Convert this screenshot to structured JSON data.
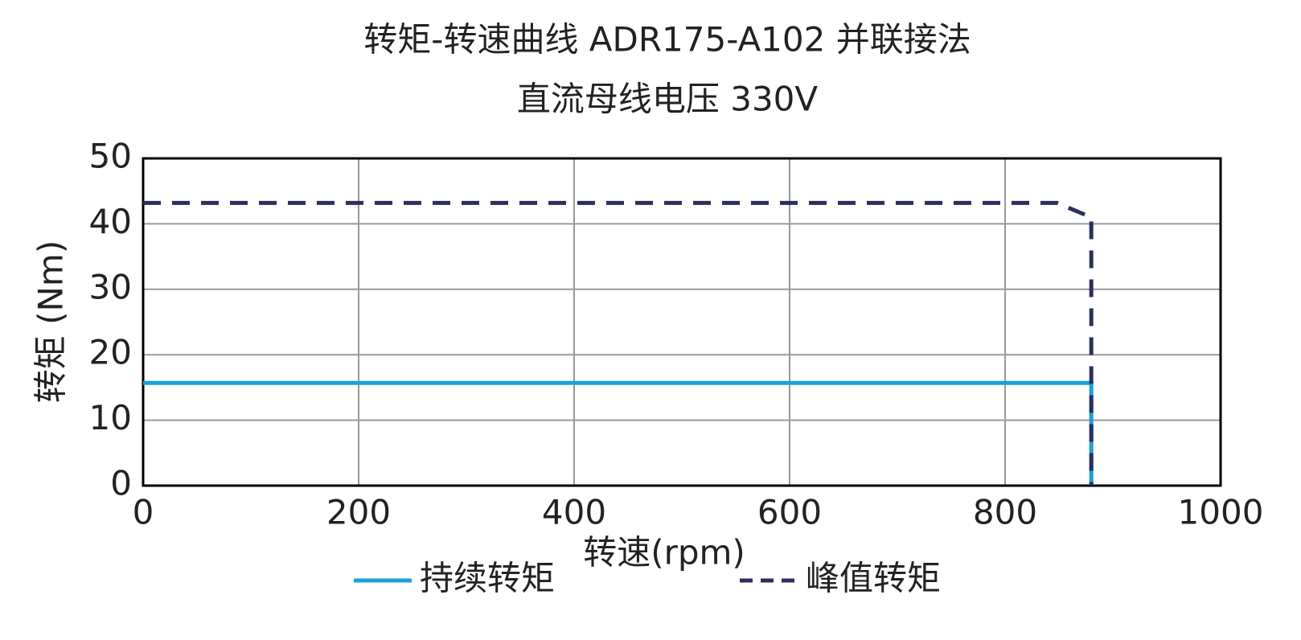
{
  "chart_data": {
    "type": "line",
    "title": "转矩-转速曲线 ADR175-A102 并联接法",
    "subtitle": "直流母线电压 330V",
    "x_label": "转速(rpm)",
    "y_label": "转矩 (Nm)",
    "xlim": [
      0,
      1000
    ],
    "xticks": [
      0,
      200,
      400,
      600,
      800,
      1000
    ],
    "ylim": [
      0,
      50
    ],
    "yticks": [
      0,
      10,
      20,
      30,
      40,
      50
    ],
    "grid": true,
    "legend": "bottom",
    "series": [
      {
        "name": "持续转矩",
        "color": "#1ba1d8",
        "dash": false,
        "x": [
          0,
          880,
          880
        ],
        "values": [
          15.7,
          15.7,
          0
        ]
      },
      {
        "name": "峰值转矩",
        "color": "#2c2f5e",
        "dash": true,
        "x": [
          0,
          848,
          880,
          880
        ],
        "values": [
          43.2,
          43.2,
          41,
          0
        ]
      }
    ]
  }
}
